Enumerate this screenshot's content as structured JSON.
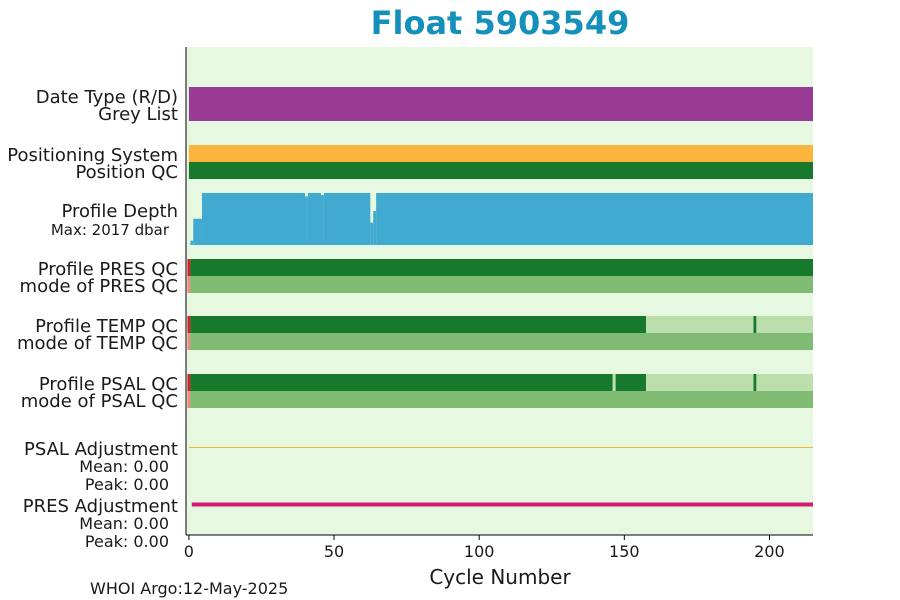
{
  "chart_data": {
    "type": "bar",
    "title": "Float 5903549",
    "xlabel": "Cycle Number",
    "xlim": [
      -1,
      215
    ],
    "xticks": [
      0,
      50,
      100,
      150,
      200
    ],
    "footer": "WHOI Argo:12-May-2025",
    "colors": {
      "title": "#1590ba",
      "background": "#e6f9e0",
      "data_type": "#993b94",
      "positioning": "#fbb43c",
      "qc_good": "#17792c",
      "qc_mode": "#7fbb72",
      "qc_partial": "#bcdeac",
      "qc_bad": "#d52027",
      "qc_mode_bad": "#f0877e",
      "depth": "#41aad0",
      "depth_label": "#1590ba",
      "psal_adj": "#f4b43a",
      "pres_adj": "#d41a74"
    },
    "rows": [
      {
        "labels": [
          "Date Type (R/D)",
          "Grey List"
        ],
        "bars": [
          {
            "segments": [
              {
                "from": 0,
                "to": 215,
                "c": "data_type"
              }
            ]
          },
          {
            "segments": [
              {
                "from": 0,
                "to": 215,
                "c": "data_type"
              }
            ]
          }
        ]
      },
      {
        "labels": [
          "Positioning System",
          "Position QC"
        ],
        "bars": [
          {
            "segments": [
              {
                "from": 0,
                "to": 215,
                "c": "positioning"
              }
            ]
          },
          {
            "segments": [
              {
                "from": 0,
                "to": 215,
                "c": "qc_good"
              }
            ]
          }
        ]
      },
      {
        "labels": [
          "Profile Depth"
        ],
        "sublabel": "Max: 2017 dbar",
        "depth_max": 2017,
        "depth_profile": [
          {
            "from": -0.5,
            "to": 0.5,
            "d": 2017
          },
          {
            "from": 0.5,
            "to": 1.5,
            "d": 1850
          },
          {
            "from": 1.5,
            "to": 4.5,
            "d": 1000
          },
          {
            "from": 4.5,
            "to": 40,
            "d": 0
          },
          {
            "from": 40,
            "to": 41,
            "d": 130
          },
          {
            "from": 41,
            "to": 45.5,
            "d": 0
          },
          {
            "from": 45.5,
            "to": 46.5,
            "d": 80
          },
          {
            "from": 46.5,
            "to": 62.5,
            "d": 0
          },
          {
            "from": 62.5,
            "to": 63.5,
            "d": 1150
          },
          {
            "from": 63.5,
            "to": 64.5,
            "d": 700
          },
          {
            "from": 64.5,
            "to": 215,
            "d": 0
          }
        ]
      },
      {
        "labels": [
          "Profile PRES QC",
          "mode of PRES QC"
        ],
        "bars": [
          {
            "segments": [
              {
                "from": -0.5,
                "to": 0.5,
                "c": "qc_bad"
              },
              {
                "from": 0.5,
                "to": 215,
                "c": "qc_good"
              }
            ]
          },
          {
            "segments": [
              {
                "from": -0.5,
                "to": 0.5,
                "c": "qc_mode_bad"
              },
              {
                "from": 0.5,
                "to": 215,
                "c": "qc_mode"
              }
            ]
          }
        ]
      },
      {
        "labels": [
          "Profile TEMP QC",
          "mode of TEMP QC"
        ],
        "bars": [
          {
            "segments": [
              {
                "from": -0.5,
                "to": 0.5,
                "c": "qc_bad"
              },
              {
                "from": 0.5,
                "to": 157.5,
                "c": "qc_good"
              },
              {
                "from": 157.5,
                "to": 194.5,
                "c": "qc_partial"
              },
              {
                "from": 194.5,
                "to": 195.5,
                "c": "qc_good"
              },
              {
                "from": 195.5,
                "to": 215,
                "c": "qc_partial"
              }
            ]
          },
          {
            "segments": [
              {
                "from": -0.5,
                "to": 0.5,
                "c": "qc_mode_bad"
              },
              {
                "from": 0.5,
                "to": 215,
                "c": "qc_mode"
              }
            ]
          }
        ]
      },
      {
        "labels": [
          "Profile PSAL QC",
          "mode of PSAL QC"
        ],
        "bars": [
          {
            "segments": [
              {
                "from": -0.5,
                "to": 0.5,
                "c": "qc_bad"
              },
              {
                "from": 0.5,
                "to": 146,
                "c": "qc_good"
              },
              {
                "from": 146,
                "to": 147,
                "c": "qc_partial"
              },
              {
                "from": 147,
                "to": 157.5,
                "c": "qc_good"
              },
              {
                "from": 157.5,
                "to": 194.5,
                "c": "qc_partial"
              },
              {
                "from": 194.5,
                "to": 195.5,
                "c": "qc_good"
              },
              {
                "from": 195.5,
                "to": 215,
                "c": "qc_partial"
              }
            ]
          },
          {
            "segments": [
              {
                "from": -0.5,
                "to": 0.5,
                "c": "qc_mode_bad"
              },
              {
                "from": 0.5,
                "to": 215,
                "c": "qc_mode"
              }
            ]
          }
        ]
      },
      {
        "labels": [
          "PSAL Adjustment"
        ],
        "stats": [
          "Mean: 0.00",
          "Peak: 0.00"
        ],
        "line": {
          "from": 0,
          "to": 215,
          "c": "psal_adj"
        }
      },
      {
        "labels": [
          "PRES Adjustment"
        ],
        "stats": [
          "Mean: 0.00",
          "Peak: 0.00"
        ],
        "line": {
          "from": 1,
          "to": 215,
          "c": "pres_adj"
        }
      }
    ]
  }
}
